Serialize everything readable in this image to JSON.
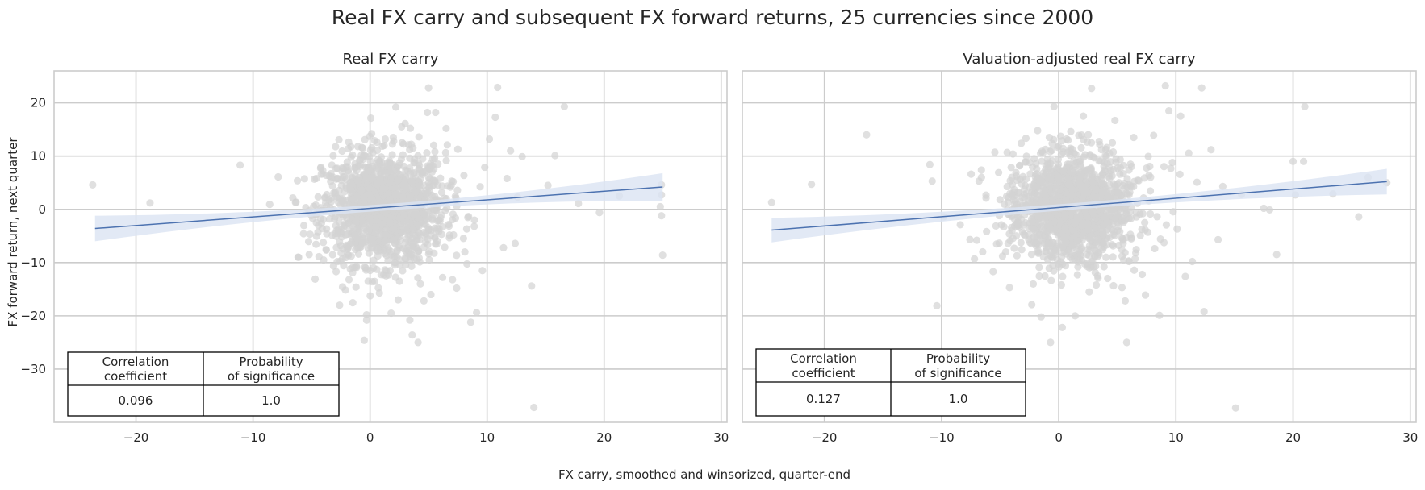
{
  "chart_data": {
    "type": "scatter",
    "title": "Real FX carry and subsequent FX forward returns, 25 currencies since 2000",
    "xlabel": "FX carry, smoothed and winsorized, quarter-end",
    "ylabel": "FX forward return, next quarter",
    "xlim": [
      -27,
      30.5
    ],
    "ylim": [
      -40,
      26
    ],
    "xticks": [
      -20,
      -10,
      0,
      10,
      20,
      30
    ],
    "yticks": [
      20,
      10,
      0,
      -10,
      -20,
      -30
    ],
    "xtick_labels": [
      "−20",
      "−10",
      "0",
      "10",
      "20",
      "30"
    ],
    "ytick_labels": [
      "20",
      "10",
      "0",
      "−10",
      "−20",
      "−30"
    ],
    "grid": true,
    "point_color": "#d3d3d3",
    "line_color": "#4c72b0",
    "band_color": "#dbe4f2",
    "panels": [
      {
        "title": "Real FX carry",
        "regression": {
          "x0": -23.5,
          "y0": -3.6,
          "x1": 25,
          "y1": 4.2
        },
        "band_halfwidth": {
          "left": 2.4,
          "center": 0.6,
          "right": 2.6
        },
        "points": [
          [
            -23.7,
            4.6
          ],
          [
            -18.8,
            1.2
          ],
          [
            -11.1,
            8.3
          ],
          [
            -6.1,
            -9.0
          ],
          [
            -5.2,
            -8.5
          ],
          [
            -4.6,
            5.8
          ],
          [
            -4.2,
            7.9
          ],
          [
            -3.8,
            1.2
          ],
          [
            -2.6,
            -18.0
          ],
          [
            -2.2,
            3.3
          ],
          [
            -1.8,
            -13.2
          ],
          [
            -1.5,
            10.2
          ],
          [
            -1.2,
            -14.6
          ],
          [
            -0.7,
            11.6
          ],
          [
            -0.5,
            -24.6
          ],
          [
            -0.3,
            -19.8
          ],
          [
            0.4,
            12.9
          ],
          [
            0.8,
            -15.7
          ],
          [
            1.3,
            13.2
          ],
          [
            1.8,
            -19.5
          ],
          [
            2.2,
            19.2
          ],
          [
            2.4,
            -17.0
          ],
          [
            3.0,
            16.1
          ],
          [
            3.4,
            -20.8
          ],
          [
            3.6,
            -23.6
          ],
          [
            3.8,
            9.5
          ],
          [
            4.1,
            -25.0
          ],
          [
            4.3,
            -14.0
          ],
          [
            4.5,
            9.5
          ],
          [
            4.6,
            -17.2
          ],
          [
            5.0,
            22.8
          ],
          [
            5.2,
            -16.0
          ],
          [
            5.6,
            18.2
          ],
          [
            5.8,
            8.5
          ],
          [
            6.2,
            -12.8
          ],
          [
            6.6,
            12.1
          ],
          [
            7.1,
            5.2
          ],
          [
            7.5,
            11.3
          ],
          [
            8.1,
            -8.0
          ],
          [
            8.6,
            -21.2
          ],
          [
            9.1,
            -19.4
          ],
          [
            9.6,
            -11.5
          ],
          [
            10.2,
            13.2
          ],
          [
            10.7,
            17.3
          ],
          [
            10.9,
            22.9
          ],
          [
            11.4,
            -7.2
          ],
          [
            12.0,
            11.0
          ],
          [
            12.6,
            2.3
          ],
          [
            13.0,
            9.9
          ],
          [
            13.8,
            -14.4
          ],
          [
            14.0,
            -37.2
          ],
          [
            15.2,
            4.5
          ],
          [
            15.8,
            10.1
          ],
          [
            16.6,
            19.3
          ],
          [
            17.8,
            1.1
          ],
          [
            19.6,
            -0.6
          ],
          [
            21.3,
            2.5
          ],
          [
            24.9,
            4.6
          ],
          [
            24.9,
            2.7
          ],
          [
            24.9,
            -1.2
          ],
          [
            25.0,
            -8.6
          ],
          [
            24.8,
            0.5
          ],
          [
            6.5,
            15.2
          ],
          [
            4.9,
            18.2
          ],
          [
            1.2,
            12.0
          ],
          [
            7.4,
            -14.8
          ],
          [
            12.4,
            -6.4
          ],
          [
            9.8,
            7.9
          ],
          [
            8.9,
            -3.2
          ],
          [
            11.7,
            5.8
          ],
          [
            -3.2,
            4.4
          ],
          [
            -3.7,
            -4.6
          ],
          [
            -4.9,
            -1.7
          ],
          [
            2.7,
            15.5
          ],
          [
            -2.9,
            -11.7
          ]
        ]
      },
      {
        "title": "Valuation-adjusted real FX carry",
        "regression": {
          "x0": -24.5,
          "y0": -3.9,
          "x1": 28,
          "y1": 5.2
        },
        "band_halfwidth": {
          "left": 2.3,
          "center": 0.6,
          "right": 2.4
        },
        "points": [
          [
            -24.5,
            1.3
          ],
          [
            -21.1,
            4.7
          ],
          [
            -16.4,
            14.0
          ],
          [
            -11.0,
            8.4
          ],
          [
            -10.8,
            5.3
          ],
          [
            -10.4,
            -18.1
          ],
          [
            -9.8,
            -1.4
          ],
          [
            -8.4,
            -2.9
          ],
          [
            -6.8,
            5.3
          ],
          [
            -5.6,
            -11.7
          ],
          [
            -4.4,
            10.7
          ],
          [
            -4.2,
            -14.7
          ],
          [
            -3.2,
            12.4
          ],
          [
            -2.3,
            -17.9
          ],
          [
            -1.8,
            14.8
          ],
          [
            -1.5,
            -20.2
          ],
          [
            -0.8,
            13.5
          ],
          [
            -0.7,
            -25.0
          ],
          [
            -0.4,
            19.3
          ],
          [
            0.3,
            -22.2
          ],
          [
            0.8,
            13.0
          ],
          [
            1.4,
            -20.0
          ],
          [
            2.1,
            17.5
          ],
          [
            2.6,
            -15.5
          ],
          [
            2.8,
            22.7
          ],
          [
            3.2,
            -14.2
          ],
          [
            4.8,
            16.7
          ],
          [
            5.4,
            -14.7
          ],
          [
            5.8,
            -25.0
          ],
          [
            6.4,
            13.5
          ],
          [
            7.4,
            -16.1
          ],
          [
            8.1,
            13.9
          ],
          [
            8.6,
            -19.9
          ],
          [
            9.1,
            23.2
          ],
          [
            9.4,
            18.5
          ],
          [
            10.4,
            17.5
          ],
          [
            10.8,
            -12.6
          ],
          [
            11.4,
            -9.8
          ],
          [
            12.2,
            22.8
          ],
          [
            12.4,
            -19.2
          ],
          [
            13.0,
            11.2
          ],
          [
            14.0,
            4.3
          ],
          [
            15.1,
            -37.3
          ],
          [
            15.6,
            2.8
          ],
          [
            17.5,
            0.2
          ],
          [
            18.0,
            -0.1
          ],
          [
            18.6,
            -8.5
          ],
          [
            20.0,
            9.0
          ],
          [
            20.2,
            2.7
          ],
          [
            20.9,
            9.0
          ],
          [
            21.0,
            19.3
          ],
          [
            23.4,
            2.9
          ],
          [
            25.6,
            -1.4
          ],
          [
            26.4,
            6.0
          ],
          [
            28.0,
            5.0
          ],
          [
            -1.3,
            -8.9
          ],
          [
            -7.0,
            -5.8
          ],
          [
            4.1,
            11.6
          ],
          [
            -3.8,
            -7.3
          ],
          [
            7.7,
            6.4
          ],
          [
            10.1,
            -3.7
          ],
          [
            -6.2,
            2.1
          ],
          [
            6.0,
            -9.8
          ],
          [
            -2.8,
            8.9
          ],
          [
            1.6,
            -12.3
          ],
          [
            3.6,
            9.1
          ],
          [
            11.8,
            5.1
          ],
          [
            -5.3,
            -6.5
          ],
          [
            9.7,
            8.8
          ],
          [
            13.6,
            -5.7
          ]
        ]
      }
    ],
    "stats_table": {
      "headers": [
        "Correlation\ncoefficient",
        "Probability\nof significance"
      ],
      "values": [
        [
          "0.096",
          "1.0"
        ],
        [
          "0.127",
          "1.0"
        ]
      ]
    }
  }
}
